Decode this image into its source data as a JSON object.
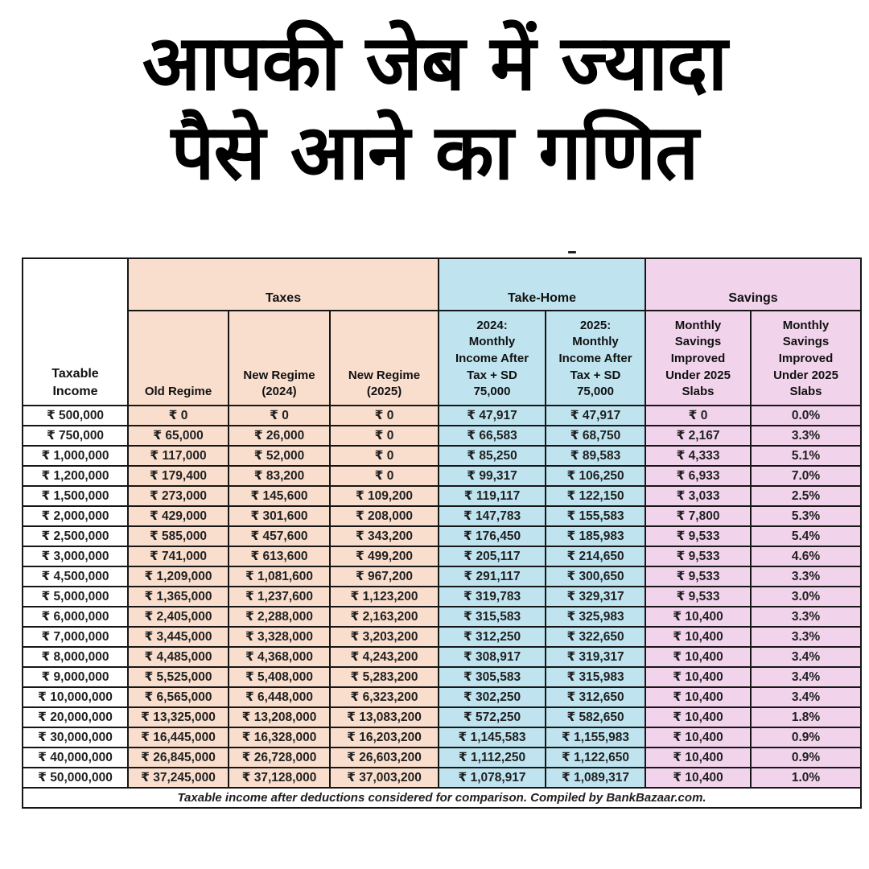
{
  "title": {
    "line1": "आपकी जेब में ज्यादा",
    "line2": "पैसे आने का गणित"
  },
  "colors": {
    "taxes_bg": "#F9DECE",
    "takehome_bg": "#BFE4F0",
    "savings_bg": "#F2D3EC",
    "border": "#161616",
    "text": "#202020"
  },
  "chart_data": {
    "type": "table",
    "title": "आपकी जेब में ज्यादा पैसे आने का गणित",
    "groups": {
      "taxes": "Taxes",
      "take_home": "Take-Home",
      "savings": "Savings"
    },
    "columns": {
      "income": "Taxable\nIncome",
      "old_regime": "Old Regime",
      "new_regime_2024": "New Regime\n(2024)",
      "new_regime_2025": "New Regime\n(2025)",
      "takehome_2024": "2024:\nMonthly\nIncome After\nTax + SD\n75,000",
      "takehome_2025": "2025:\nMonthly\nIncome After\nTax + SD\n75,000",
      "savings_amount": "Monthly\nSavings\nImproved\nUnder 2025\nSlabs",
      "savings_percent": "Monthly\nSavings\nImproved\nUnder 2025\nSlabs"
    },
    "rows": [
      [
        "₹ 500,000",
        "₹ 0",
        "₹ 0",
        "₹ 0",
        "₹ 47,917",
        "₹ 47,917",
        "₹ 0",
        "0.0%"
      ],
      [
        "₹ 750,000",
        "₹ 65,000",
        "₹ 26,000",
        "₹ 0",
        "₹ 66,583",
        "₹ 68,750",
        "₹ 2,167",
        "3.3%"
      ],
      [
        "₹ 1,000,000",
        "₹ 117,000",
        "₹ 52,000",
        "₹ 0",
        "₹ 85,250",
        "₹ 89,583",
        "₹ 4,333",
        "5.1%"
      ],
      [
        "₹ 1,200,000",
        "₹ 179,400",
        "₹ 83,200",
        "₹ 0",
        "₹ 99,317",
        "₹ 106,250",
        "₹ 6,933",
        "7.0%"
      ],
      [
        "₹ 1,500,000",
        "₹ 273,000",
        "₹ 145,600",
        "₹ 109,200",
        "₹ 119,117",
        "₹ 122,150",
        "₹ 3,033",
        "2.5%"
      ],
      [
        "₹ 2,000,000",
        "₹ 429,000",
        "₹ 301,600",
        "₹ 208,000",
        "₹ 147,783",
        "₹ 155,583",
        "₹ 7,800",
        "5.3%"
      ],
      [
        "₹ 2,500,000",
        "₹ 585,000",
        "₹ 457,600",
        "₹ 343,200",
        "₹ 176,450",
        "₹ 185,983",
        "₹ 9,533",
        "5.4%"
      ],
      [
        "₹ 3,000,000",
        "₹ 741,000",
        "₹ 613,600",
        "₹ 499,200",
        "₹ 205,117",
        "₹ 214,650",
        "₹ 9,533",
        "4.6%"
      ],
      [
        "₹ 4,500,000",
        "₹ 1,209,000",
        "₹ 1,081,600",
        "₹ 967,200",
        "₹ 291,117",
        "₹ 300,650",
        "₹ 9,533",
        "3.3%"
      ],
      [
        "₹ 5,000,000",
        "₹ 1,365,000",
        "₹ 1,237,600",
        "₹ 1,123,200",
        "₹ 319,783",
        "₹ 329,317",
        "₹ 9,533",
        "3.0%"
      ],
      [
        "₹ 6,000,000",
        "₹ 2,405,000",
        "₹ 2,288,000",
        "₹ 2,163,200",
        "₹ 315,583",
        "₹ 325,983",
        "₹ 10,400",
        "3.3%"
      ],
      [
        "₹ 7,000,000",
        "₹ 3,445,000",
        "₹ 3,328,000",
        "₹ 3,203,200",
        "₹ 312,250",
        "₹ 322,650",
        "₹ 10,400",
        "3.3%"
      ],
      [
        "₹ 8,000,000",
        "₹ 4,485,000",
        "₹ 4,368,000",
        "₹ 4,243,200",
        "₹ 308,917",
        "₹ 319,317",
        "₹ 10,400",
        "3.4%"
      ],
      [
        "₹ 9,000,000",
        "₹ 5,525,000",
        "₹ 5,408,000",
        "₹ 5,283,200",
        "₹ 305,583",
        "₹ 315,983",
        "₹ 10,400",
        "3.4%"
      ],
      [
        "₹ 10,000,000",
        "₹ 6,565,000",
        "₹ 6,448,000",
        "₹ 6,323,200",
        "₹ 302,250",
        "₹ 312,650",
        "₹ 10,400",
        "3.4%"
      ],
      [
        "₹ 20,000,000",
        "₹ 13,325,000",
        "₹ 13,208,000",
        "₹ 13,083,200",
        "₹ 572,250",
        "₹ 582,650",
        "₹ 10,400",
        "1.8%"
      ],
      [
        "₹ 30,000,000",
        "₹ 16,445,000",
        "₹ 16,328,000",
        "₹ 16,203,200",
        "₹ 1,145,583",
        "₹ 1,155,983",
        "₹ 10,400",
        "0.9%"
      ],
      [
        "₹ 40,000,000",
        "₹ 26,845,000",
        "₹ 26,728,000",
        "₹ 26,603,200",
        "₹ 1,112,250",
        "₹ 1,122,650",
        "₹ 10,400",
        "0.9%"
      ],
      [
        "₹ 50,000,000",
        "₹ 37,245,000",
        "₹ 37,128,000",
        "₹ 37,003,200",
        "₹ 1,078,917",
        "₹ 1,089,317",
        "₹ 10,400",
        "1.0%"
      ]
    ],
    "footnote": "Taxable income after deductions considered for comparison. Compiled by BankBazaar.com."
  }
}
